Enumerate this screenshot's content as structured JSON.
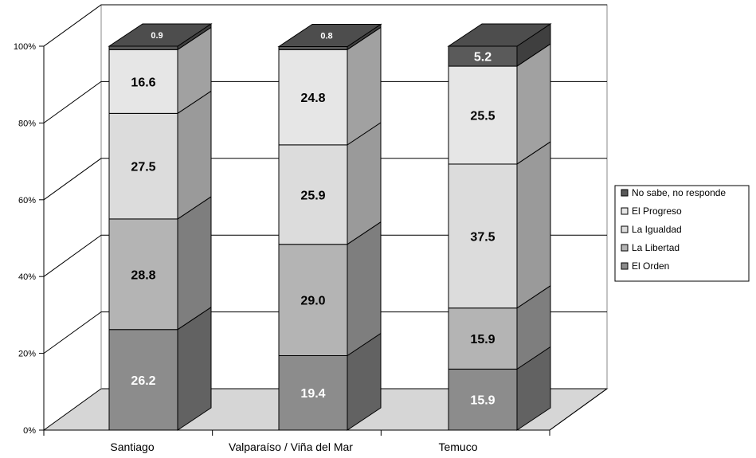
{
  "colors": {
    "El Orden": "#8c8c8c",
    "La Libertad": "#b4b4b4",
    "La Igualdad": "#dcdcdc",
    "El Progreso": "#e6e6e6",
    "No sabe, no responde": "#5a5a5a",
    "floor": "#d6d6d6",
    "grid": "#000000"
  },
  "chart_data": {
    "type": "bar",
    "stacked": true,
    "three_d": true,
    "categories": [
      "Santiago",
      "Valparaíso / Viña del Mar",
      "Temuco"
    ],
    "series": [
      {
        "name": "El Orden",
        "values": [
          26.2,
          19.4,
          15.9
        ],
        "labels": [
          "26.2",
          "19.4",
          "15.9"
        ]
      },
      {
        "name": "La Libertad",
        "values": [
          28.8,
          29.0,
          15.9
        ],
        "labels": [
          "28.8",
          "29.0",
          "15.9"
        ]
      },
      {
        "name": "La Igualdad",
        "values": [
          27.5,
          25.9,
          37.5
        ],
        "labels": [
          "27.5",
          "25.9",
          "37.5"
        ]
      },
      {
        "name": "El Progreso",
        "values": [
          16.6,
          24.8,
          25.5
        ],
        "labels": [
          "16.6",
          "24.8",
          "25.5"
        ]
      },
      {
        "name": "No sabe, no responde",
        "values": [
          0.9,
          0.8,
          5.2
        ],
        "labels": [
          "0.9",
          "0.8",
          "5.2"
        ]
      }
    ],
    "yticks": [
      "0%",
      "20%",
      "40%",
      "60%",
      "80%",
      "100%"
    ],
    "ylim": [
      0,
      100
    ],
    "legend": {
      "position": "right",
      "entries": [
        "No sabe, no responde",
        "El Progreso",
        "La Igualdad",
        "La Libertad",
        "El Orden"
      ]
    },
    "grid": true
  }
}
